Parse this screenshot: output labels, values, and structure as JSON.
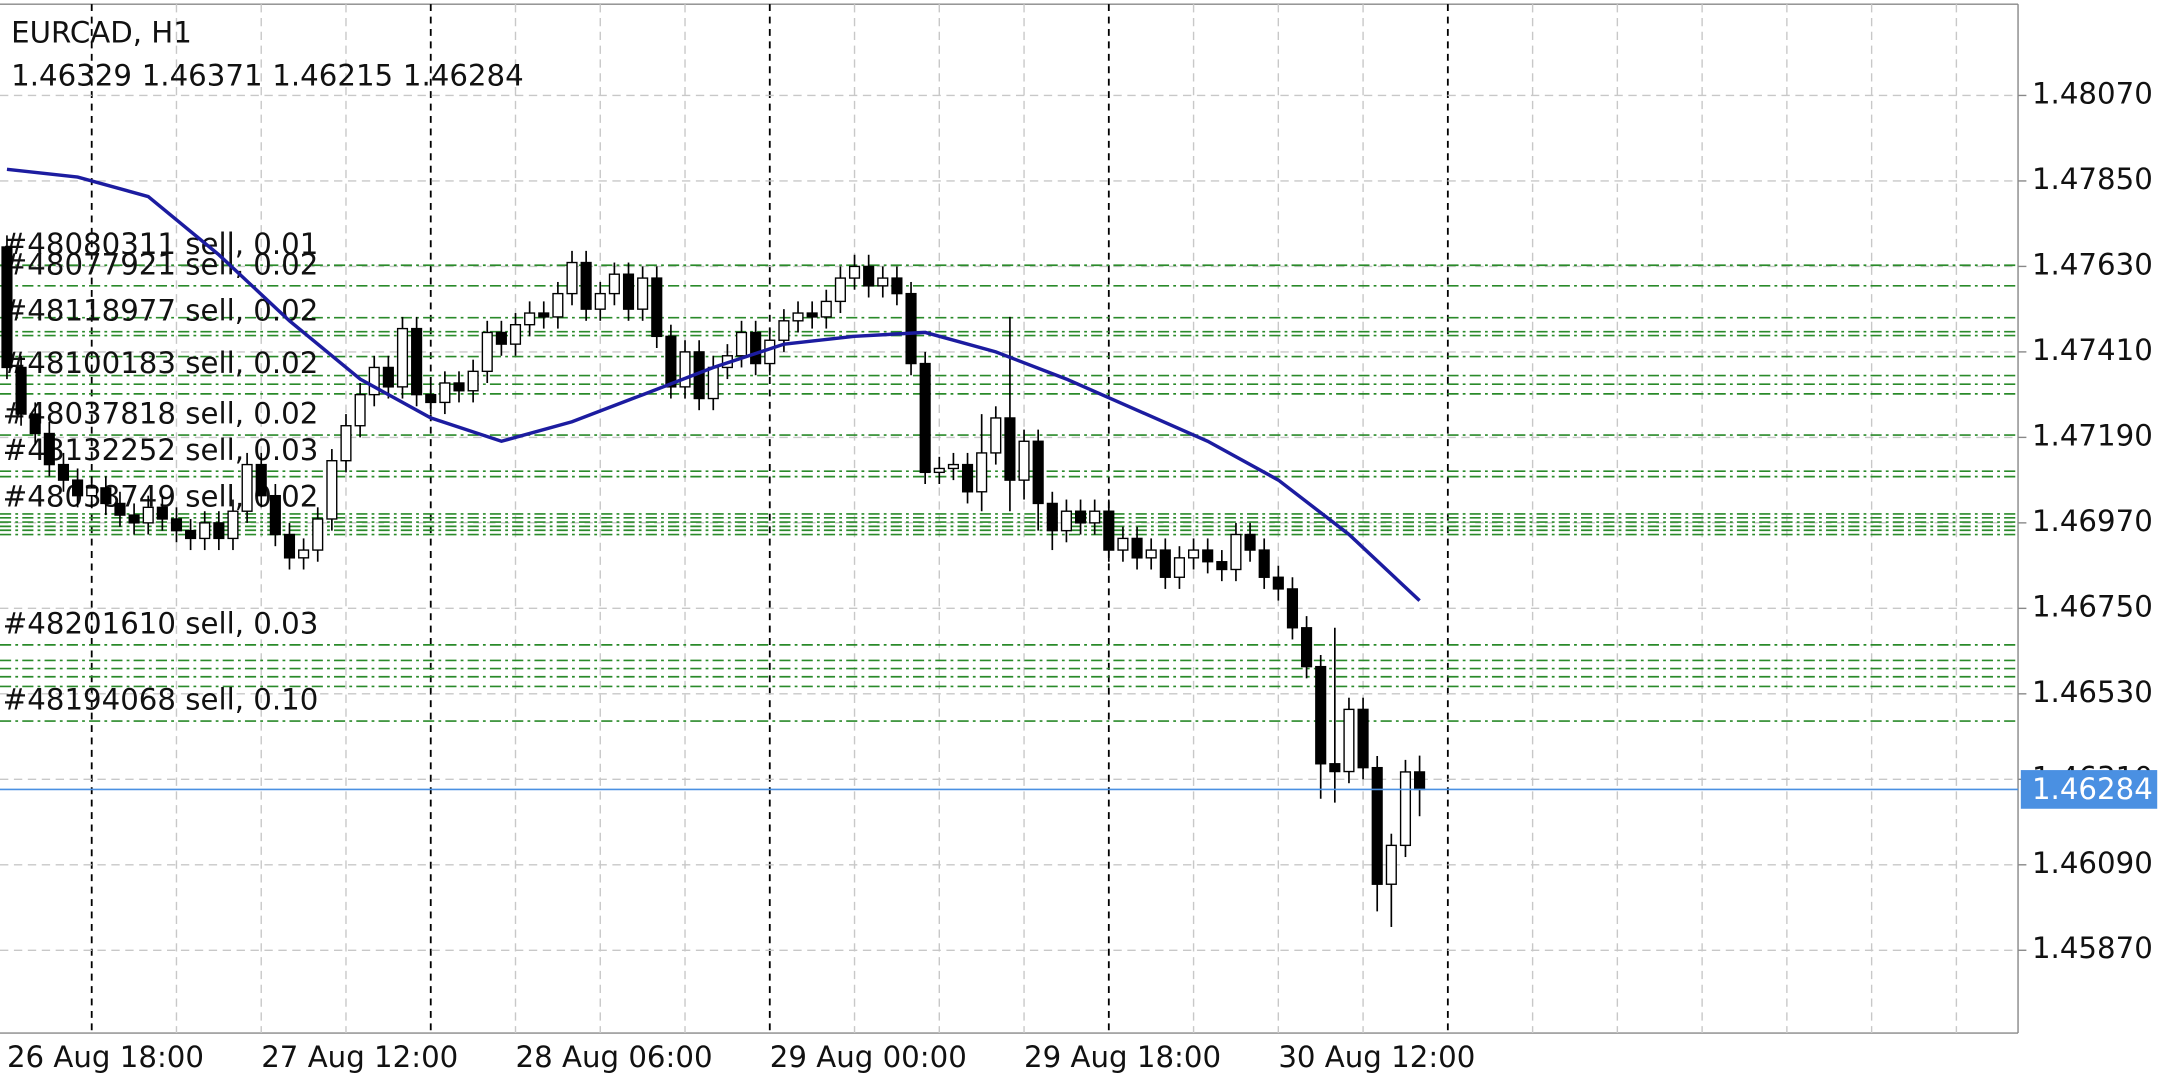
{
  "chart_data": {
    "type": "candlestick",
    "title": "EURCAD, H1",
    "categories": [
      "26 Aug 18:00",
      null,
      null,
      null,
      null,
      null,
      null,
      null,
      null,
      null,
      null,
      null,
      null,
      null,
      null,
      null,
      null,
      null,
      "27 Aug 12:00",
      null,
      null,
      null,
      null,
      null,
      null,
      null,
      null,
      null,
      null,
      null,
      null,
      null,
      null,
      null,
      null,
      null,
      "28 Aug 06:00",
      null,
      null,
      null,
      null,
      null,
      null,
      null,
      null,
      null,
      null,
      null,
      null,
      null,
      null,
      null,
      null,
      null,
      "29 Aug 00:00",
      null,
      null,
      null,
      null,
      null,
      null,
      null,
      null,
      null,
      null,
      null,
      null,
      null,
      null,
      null,
      null,
      null,
      "29 Aug 18:00",
      null,
      null,
      null,
      null,
      null,
      null,
      null,
      null,
      null,
      null,
      null,
      null,
      null,
      null,
      null,
      null,
      null,
      "30 Aug 12:00",
      null,
      null,
      null,
      null,
      null,
      null,
      null,
      null,
      null,
      null
    ],
    "open": [
      1.4768,
      1.4737,
      1.4725,
      1.472,
      1.4712,
      1.4708,
      1.4704,
      1.4706,
      1.4702,
      1.4699,
      1.4697,
      1.4701,
      1.4698,
      1.4695,
      1.4693,
      1.4697,
      1.4693,
      1.47,
      1.4712,
      1.4704,
      1.4694,
      1.4688,
      1.469,
      1.4698,
      1.4713,
      1.4722,
      1.473,
      1.4737,
      1.4732,
      1.4747,
      1.473,
      1.4728,
      1.4733,
      1.4731,
      1.4736,
      1.4746,
      1.4743,
      1.4748,
      1.4751,
      1.475,
      1.4756,
      1.4764,
      1.4752,
      1.4756,
      1.4761,
      1.4752,
      1.476,
      1.4745,
      1.4732,
      1.4741,
      1.4729,
      1.4737,
      1.474,
      1.4746,
      1.4738,
      1.4744,
      1.4749,
      1.4751,
      1.475,
      1.4754,
      1.476,
      1.4763,
      1.4758,
      1.476,
      1.4756,
      1.4738,
      1.471,
      1.4711,
      1.4712,
      1.4705,
      1.4715,
      1.4724,
      1.4708,
      1.4718,
      1.4702,
      1.4695,
      1.47,
      1.4697,
      1.47,
      1.469,
      1.4693,
      1.4688,
      1.469,
      1.4683,
      1.4688,
      1.469,
      1.4687,
      1.4685,
      1.4694,
      1.469,
      1.4683,
      1.468,
      1.467,
      1.466,
      1.4635,
      1.4633,
      1.4649,
      1.4634,
      1.4604,
      1.4614,
      1.46329
    ],
    "high": [
      1.4771,
      1.474,
      1.4728,
      1.4723,
      1.4715,
      1.4711,
      1.4709,
      1.4709,
      1.4705,
      1.4702,
      1.4704,
      1.4704,
      1.4701,
      1.4698,
      1.47,
      1.47,
      1.4703,
      1.4715,
      1.4715,
      1.4707,
      1.4697,
      1.4693,
      1.4701,
      1.4716,
      1.4725,
      1.4733,
      1.474,
      1.474,
      1.475,
      1.475,
      1.4733,
      1.4736,
      1.4736,
      1.4739,
      1.4749,
      1.4749,
      1.4751,
      1.4754,
      1.4754,
      1.4759,
      1.4767,
      1.4767,
      1.4759,
      1.4764,
      1.4764,
      1.4763,
      1.4763,
      1.4748,
      1.4744,
      1.4744,
      1.474,
      1.4743,
      1.4749,
      1.4749,
      1.4747,
      1.4752,
      1.4754,
      1.4754,
      1.4757,
      1.4763,
      1.4766,
      1.4766,
      1.4763,
      1.4763,
      1.4759,
      1.4741,
      1.4714,
      1.4715,
      1.4715,
      1.4725,
      1.4727,
      1.475,
      1.4721,
      1.4721,
      1.4705,
      1.4703,
      1.4703,
      1.4703,
      1.4703,
      1.4696,
      1.4696,
      1.4693,
      1.4693,
      1.4691,
      1.4693,
      1.4693,
      1.469,
      1.4697,
      1.4697,
      1.4693,
      1.4686,
      1.4683,
      1.4673,
      1.4663,
      1.467,
      1.4652,
      1.4652,
      1.4637,
      1.4617,
      1.4636,
      1.46371
    ],
    "low": [
      1.4734,
      1.4722,
      1.4717,
      1.4709,
      1.4705,
      1.4701,
      1.4701,
      1.4699,
      1.4696,
      1.4694,
      1.4694,
      1.4695,
      1.4692,
      1.469,
      1.469,
      1.469,
      1.469,
      1.4697,
      1.4701,
      1.4691,
      1.4685,
      1.4685,
      1.4687,
      1.4695,
      1.471,
      1.4719,
      1.4727,
      1.4729,
      1.4729,
      1.4727,
      1.4725,
      1.4725,
      1.4728,
      1.4728,
      1.4733,
      1.474,
      1.474,
      1.4745,
      1.4747,
      1.4747,
      1.4753,
      1.4749,
      1.4749,
      1.4753,
      1.4749,
      1.4749,
      1.4742,
      1.4729,
      1.4729,
      1.4726,
      1.4726,
      1.4734,
      1.4737,
      1.4735,
      1.4735,
      1.4741,
      1.4746,
      1.4747,
      1.4747,
      1.4751,
      1.4757,
      1.4755,
      1.4755,
      1.4753,
      1.4735,
      1.4707,
      1.4707,
      1.4708,
      1.4702,
      1.47,
      1.4712,
      1.47,
      1.4703,
      1.4695,
      1.469,
      1.4692,
      1.4694,
      1.4694,
      1.4687,
      1.4687,
      1.4685,
      1.4685,
      1.468,
      1.468,
      1.4685,
      1.4684,
      1.4682,
      1.4682,
      1.4687,
      1.468,
      1.4677,
      1.4667,
      1.4657,
      1.4626,
      1.4625,
      1.463,
      1.4631,
      1.4597,
      1.4593,
      1.4611,
      1.46215
    ],
    "close": [
      1.4737,
      1.4725,
      1.472,
      1.4712,
      1.4708,
      1.4704,
      1.4706,
      1.4702,
      1.4699,
      1.4697,
      1.4701,
      1.4698,
      1.4695,
      1.4693,
      1.4697,
      1.4693,
      1.47,
      1.4712,
      1.4704,
      1.4694,
      1.4688,
      1.469,
      1.4698,
      1.4713,
      1.4722,
      1.473,
      1.4737,
      1.4732,
      1.4747,
      1.473,
      1.4728,
      1.4733,
      1.4731,
      1.4736,
      1.4746,
      1.4743,
      1.4748,
      1.4751,
      1.475,
      1.4756,
      1.4764,
      1.4752,
      1.4756,
      1.4761,
      1.4752,
      1.476,
      1.4745,
      1.4732,
      1.4741,
      1.4729,
      1.4737,
      1.474,
      1.4746,
      1.4738,
      1.4744,
      1.4749,
      1.4751,
      1.475,
      1.4754,
      1.476,
      1.4763,
      1.4758,
      1.476,
      1.4756,
      1.4738,
      1.471,
      1.4711,
      1.4712,
      1.4705,
      1.4715,
      1.4724,
      1.4708,
      1.4718,
      1.4702,
      1.4695,
      1.47,
      1.4697,
      1.47,
      1.469,
      1.4693,
      1.4688,
      1.469,
      1.4683,
      1.4688,
      1.469,
      1.4687,
      1.4685,
      1.4694,
      1.469,
      1.4683,
      1.468,
      1.467,
      1.466,
      1.4635,
      1.4633,
      1.4649,
      1.4634,
      1.4604,
      1.4614,
      1.46329,
      1.46284
    ],
    "colors": {
      "up": "#ffffff",
      "down": "#000000"
    },
    "ma": {
      "color": "#1c1ca0",
      "x": [
        0,
        5,
        10,
        15,
        20,
        25,
        30,
        35,
        40,
        45,
        50,
        55,
        60,
        65,
        70,
        75,
        80,
        85,
        90,
        95,
        100
      ],
      "values": [
        1.4788,
        1.4786,
        1.4781,
        1.4766,
        1.4749,
        1.4734,
        1.4724,
        1.4718,
        1.4723,
        1.473,
        1.4737,
        1.4743,
        1.4745,
        1.4746,
        1.4741,
        1.4734,
        1.4726,
        1.4718,
        1.4708,
        1.4694,
        1.4677
      ]
    },
    "order_color": "#2a8a2a",
    "orders": [
      {
        "label": "#48080311 sell, 0.01",
        "price": 1.47633
      },
      {
        "label": "#48077921 sell, 0.02",
        "price": 1.4758
      },
      {
        "price": 1.47498
      },
      {
        "label": "#48118977 sell, 0.02",
        "price": 1.47462
      },
      {
        "price": 1.47452
      },
      {
        "price": 1.47398
      },
      {
        "price": 1.47349
      },
      {
        "label": "#48100183 sell, 0.02",
        "price": 1.47327
      },
      {
        "price": 1.47302
      },
      {
        "label": "#48037818 sell, 0.02",
        "price": 1.47196
      },
      {
        "label": "#48132252 sell, 0.03",
        "price": 1.47103
      },
      {
        "price": 1.47089
      },
      {
        "price": 1.46993
      },
      {
        "label": "#48038749 sell, 0.02",
        "price": 1.46983
      },
      {
        "price": 1.46972
      },
      {
        "price": 1.46961
      },
      {
        "price": 1.46951
      },
      {
        "price": 1.4694
      },
      {
        "label": "#48201610 sell, 0.03",
        "price": 1.46656
      },
      {
        "price": 1.46616
      },
      {
        "price": 1.46595
      },
      {
        "price": 1.46574
      },
      {
        "price": 1.46549
      },
      {
        "label": "#48194068 sell, 0.10",
        "price": 1.4646
      }
    ],
    "current_price": 1.46284,
    "current_price_color": "#4a90e2",
    "ylim": [
      1.45657,
      1.48305
    ],
    "yticks": [
      {
        "value": 1.4807,
        "label": "1.48070"
      },
      {
        "value": 1.4785,
        "label": "1.47850"
      },
      {
        "value": 1.4763,
        "label": "1.47630"
      },
      {
        "value": 1.4741,
        "label": "1.47410"
      },
      {
        "value": 1.4719,
        "label": "1.47190"
      },
      {
        "value": 1.4697,
        "label": "1.46970"
      },
      {
        "value": 1.4675,
        "label": "1.46750"
      },
      {
        "value": 1.4653,
        "label": "1.46530"
      },
      {
        "value": 1.4631,
        "label": "1.46310"
      },
      {
        "value": 1.4609,
        "label": "1.46090"
      },
      {
        "value": 1.4587,
        "label": "1.45870"
      }
    ],
    "grid": true
  }
}
